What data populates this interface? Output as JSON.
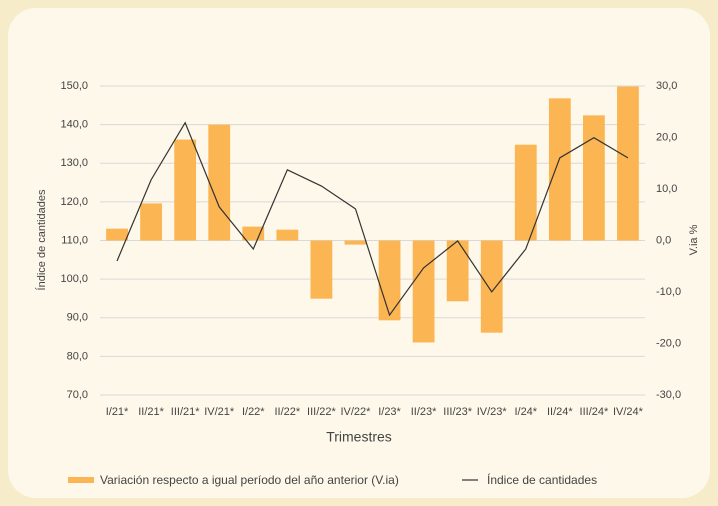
{
  "chart_data": {
    "type": "combo",
    "x_label": "Trimestres",
    "y_label": "Índice de cantidades",
    "y2_label": "V.ia %",
    "categories": [
      "I/21*",
      "II/21*",
      "III/21*",
      "IV/21*",
      "I/22*",
      "II/22*",
      "III/22*",
      "IV/22*",
      "I/23*",
      "II/23*",
      "III/23*",
      "IV/23*",
      "I/24*",
      "II/24*",
      "III/24*",
      "IV/24*"
    ],
    "series": [
      {
        "name": "Variación respecto a igual período del año anterior (V.ia)",
        "type": "bar",
        "axis": "y2",
        "color": "#fbb552",
        "values": [
          2.3,
          7.2,
          19.6,
          22.5,
          2.7,
          2.1,
          -11.3,
          -0.8,
          -15.5,
          -19.8,
          -11.8,
          -17.9,
          18.6,
          27.6,
          24.3,
          29.9
        ]
      },
      {
        "name": "Índice de cantidades",
        "type": "line",
        "color": "#333333",
        "values": [
          104.7,
          125.7,
          140.5,
          118.7,
          107.8,
          128.3,
          124.1,
          118.2,
          90.7,
          102.9,
          109.9,
          96.7,
          107.8,
          131.4,
          136.6,
          131.4
        ]
      }
    ],
    "ylim": [
      70,
      150
    ],
    "yticks": [
      {
        "value": 70,
        "label": "70,0"
      },
      {
        "value": 80,
        "label": "80,0"
      },
      {
        "value": 90,
        "label": "90,0"
      },
      {
        "value": 100,
        "label": "100,0"
      },
      {
        "value": 110,
        "label": "110,0"
      },
      {
        "value": 120,
        "label": "120,0"
      },
      {
        "value": 130,
        "label": "130,0"
      },
      {
        "value": 140,
        "label": "140,0"
      },
      {
        "value": 150,
        "label": "150,0"
      }
    ],
    "y2lim": [
      -30,
      30
    ],
    "y2ticks": [
      {
        "value": -30,
        "label": "-30,0"
      },
      {
        "value": -20,
        "label": "-20,0"
      },
      {
        "value": -10,
        "label": "-10,0"
      },
      {
        "value": 0,
        "label": "0,0"
      },
      {
        "value": 10,
        "label": "10,0"
      },
      {
        "value": 20,
        "label": "20,0"
      },
      {
        "value": 30,
        "label": "30,0"
      }
    ],
    "grid": true
  }
}
